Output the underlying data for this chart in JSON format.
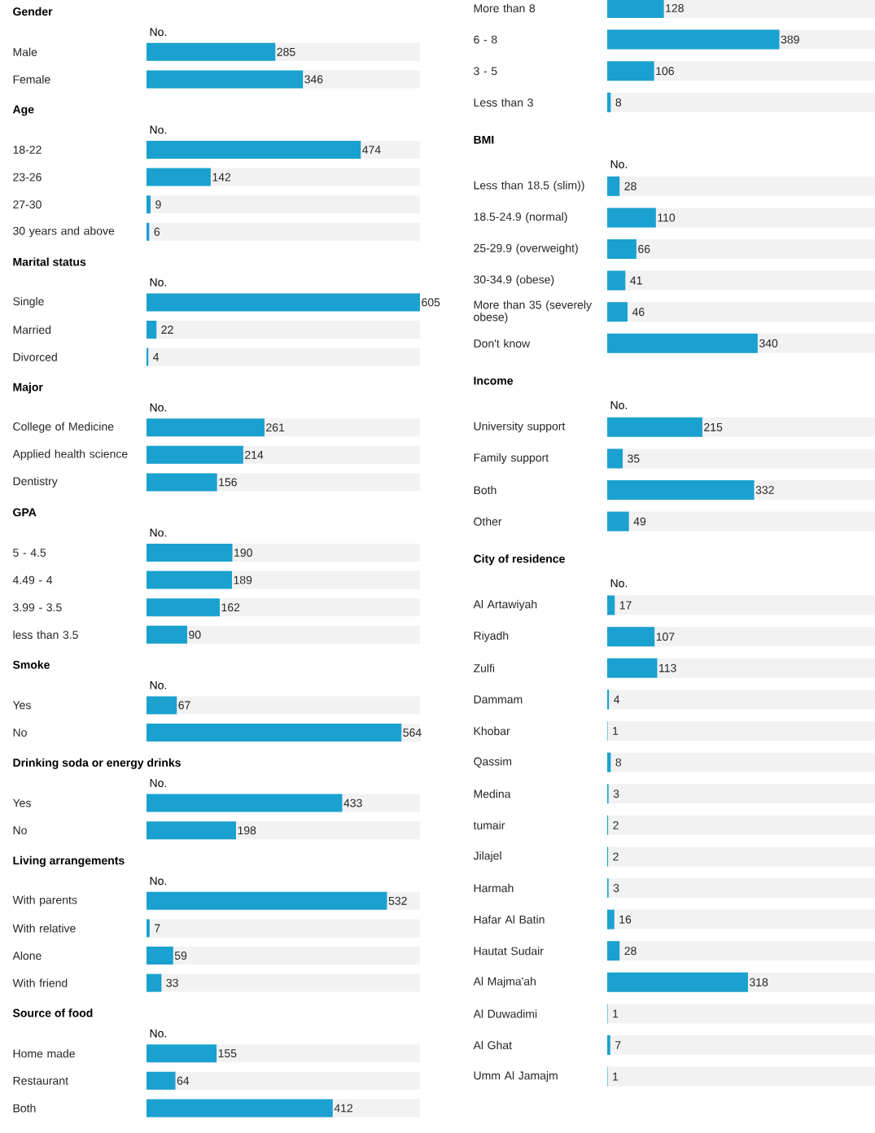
{
  "chart_data": [
    {
      "type": "bar",
      "orientation": "horizontal",
      "title": "Gender",
      "xlabel": "No.",
      "categories": [
        "Male",
        "Female"
      ],
      "values": [
        285,
        346
      ],
      "color": "#1aa1cf",
      "xlim": [
        0,
        605
      ],
      "data_labels": true,
      "tick_labels": "y"
    },
    {
      "type": "bar",
      "orientation": "horizontal",
      "title": "Age",
      "xlabel": "No.",
      "categories": [
        "18-22",
        "23-26",
        "27-30",
        "30 years and above"
      ],
      "values": [
        474,
        142,
        9,
        6
      ],
      "color": "#1aa1cf",
      "xlim": [
        0,
        605
      ],
      "data_labels": true,
      "tick_labels": "y"
    },
    {
      "type": "bar",
      "orientation": "horizontal",
      "title": "Marital status",
      "xlabel": "No.",
      "categories": [
        "Single",
        "Married",
        "Divorced"
      ],
      "values": [
        605,
        22,
        4
      ],
      "color": "#1aa1cf",
      "xlim": [
        0,
        605
      ],
      "data_labels": true,
      "tick_labels": "y"
    },
    {
      "type": "bar",
      "orientation": "horizontal",
      "title": "Major",
      "xlabel": "No.",
      "categories": [
        "College of Medicine",
        "Applied health science",
        "Dentistry"
      ],
      "values": [
        261,
        214,
        156
      ],
      "color": "#1aa1cf",
      "xlim": [
        0,
        605
      ],
      "data_labels": true,
      "tick_labels": "y"
    },
    {
      "type": "bar",
      "orientation": "horizontal",
      "title": "GPA",
      "xlabel": "No.",
      "categories": [
        "5 - 4.5",
        "4.49 - 4",
        "3.99 - 3.5",
        "less than 3.5"
      ],
      "values": [
        190,
        189,
        162,
        90
      ],
      "color": "#1aa1cf",
      "xlim": [
        0,
        605
      ],
      "data_labels": true,
      "tick_labels": "y"
    },
    {
      "type": "bar",
      "orientation": "horizontal",
      "title": "Smoke",
      "xlabel": "No.",
      "categories": [
        "Yes",
        "No"
      ],
      "values": [
        67,
        564
      ],
      "color": "#1aa1cf",
      "xlim": [
        0,
        605
      ],
      "data_labels": true,
      "tick_labels": "y"
    },
    {
      "type": "bar",
      "orientation": "horizontal",
      "title": "Drinking soda or energy drinks",
      "xlabel": "No.",
      "categories": [
        "Yes",
        "No"
      ],
      "values": [
        433,
        198
      ],
      "color": "#1aa1cf",
      "xlim": [
        0,
        605
      ],
      "data_labels": true,
      "tick_labels": "y"
    },
    {
      "type": "bar",
      "orientation": "horizontal",
      "title": "Living arrangements",
      "xlabel": "No.",
      "categories": [
        "With parents",
        "With relative",
        "Alone",
        "With friend"
      ],
      "values": [
        532,
        7,
        59,
        33
      ],
      "color": "#1aa1cf",
      "xlim": [
        0,
        605
      ],
      "data_labels": true,
      "tick_labels": "y"
    },
    {
      "type": "bar",
      "orientation": "horizontal",
      "title": "Source of food",
      "xlabel": "No.",
      "categories": [
        "Home made",
        "Restaurant",
        "Both"
      ],
      "values": [
        155,
        64,
        412
      ],
      "color": "#1aa1cf",
      "xlim": [
        0,
        605
      ],
      "data_labels": true,
      "tick_labels": "y"
    },
    {
      "type": "bar",
      "orientation": "horizontal",
      "categories": [
        "More than 8",
        "6 - 8",
        "3 - 5",
        "Less than 3"
      ],
      "values": [
        128,
        389,
        106,
        8
      ],
      "color": "#1aa1cf",
      "xlim": [
        0,
        605
      ],
      "data_labels": true,
      "tick_labels": "y"
    },
    {
      "type": "bar",
      "orientation": "horizontal",
      "title": "BMI",
      "xlabel": "No.",
      "categories": [
        "Less than 18.5 (slim))",
        "18.5-24.9 (normal)",
        "25-29.9 (overweight)",
        "30-34.9 (obese)",
        "More than 35 (severely obese)",
        "Don't know"
      ],
      "values": [
        28,
        110,
        66,
        41,
        46,
        340
      ],
      "color": "#1aa1cf",
      "xlim": [
        0,
        605
      ],
      "data_labels": true,
      "tick_labels": "y"
    },
    {
      "type": "bar",
      "orientation": "horizontal",
      "title": "Income",
      "xlabel": "No.",
      "categories": [
        "University support",
        "Family support",
        "Both",
        "Other"
      ],
      "values": [
        215,
        35,
        332,
        49
      ],
      "color": "#1aa1cf",
      "xlim": [
        0,
        605
      ],
      "data_labels": true,
      "tick_labels": "y"
    },
    {
      "type": "bar",
      "orientation": "horizontal",
      "title": "City of residence",
      "xlabel": "No.",
      "categories": [
        "Al Artawiyah",
        "Riyadh",
        "Zulfi",
        "Dammam",
        "Khobar",
        "Qassim",
        "Medina",
        "tumair",
        "Jilajel",
        "Harmah",
        "Hafar Al Batin",
        "Hautat Sudair",
        "Al Majma'ah",
        "Al Duwadimi",
        "Al Ghat",
        "Umm Al Jamajm"
      ],
      "values": [
        17,
        107,
        113,
        4,
        1,
        8,
        3,
        2,
        2,
        3,
        16,
        28,
        318,
        1,
        7,
        1
      ],
      "color": "#1aa1cf",
      "xlim": [
        0,
        605
      ],
      "data_labels": true,
      "tick_labels": "y"
    }
  ]
}
